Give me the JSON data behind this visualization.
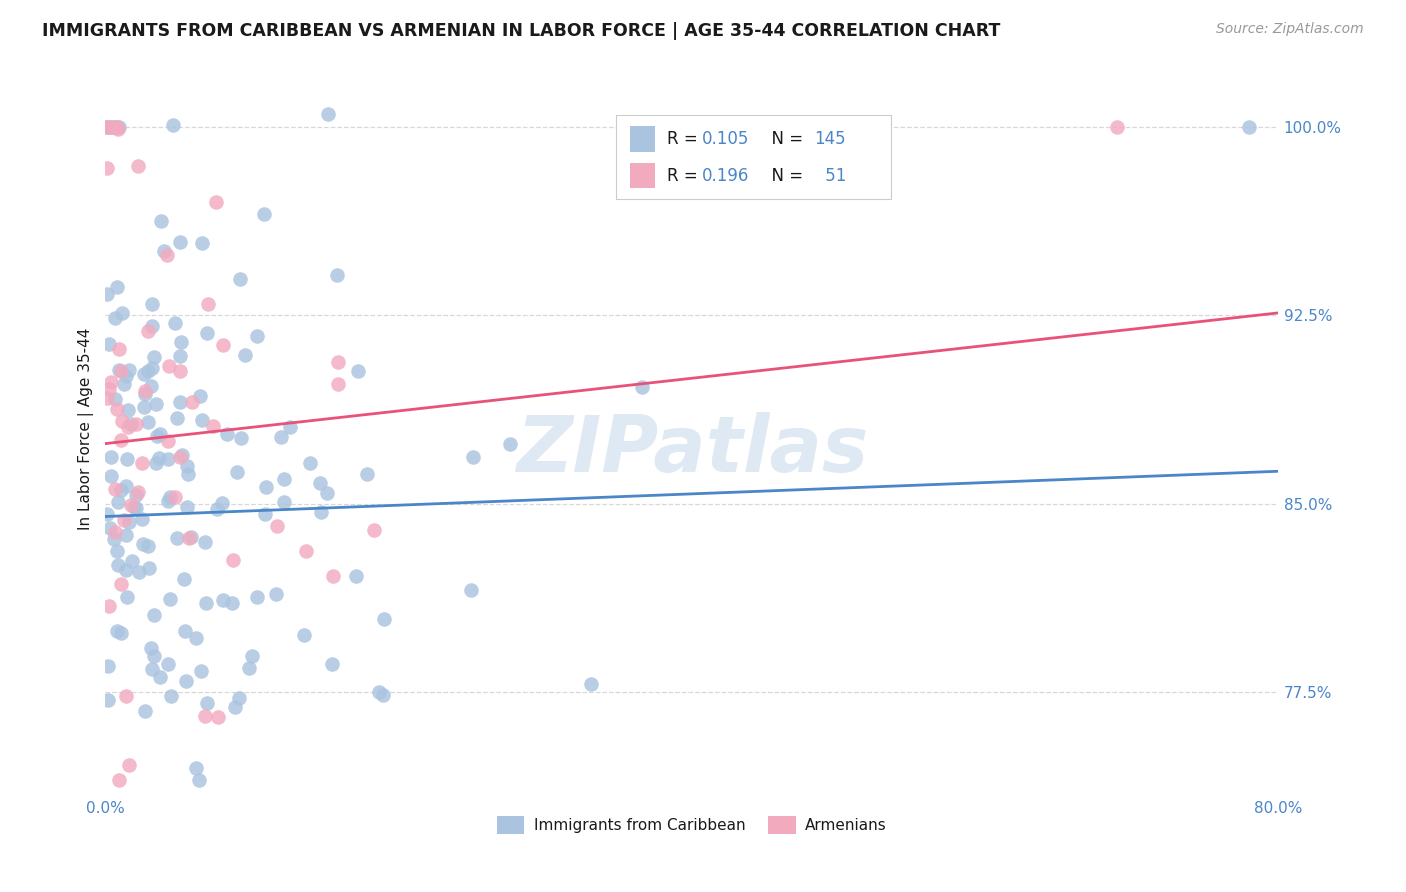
{
  "title": "IMMIGRANTS FROM CARIBBEAN VS ARMENIAN IN LABOR FORCE | AGE 35-44 CORRELATION CHART",
  "source_text": "Source: ZipAtlas.com",
  "ylabel": "In Labor Force | Age 35-44",
  "legend_labels": [
    "Immigrants from Caribbean",
    "Armenians"
  ],
  "legend_r_carib": "0.105",
  "legend_n_carib": "145",
  "legend_r_arm": "0.196",
  "legend_n_arm": "51",
  "caribbean_color": "#aac4e0",
  "armenian_color": "#f2aabf",
  "caribbean_line_color": "#4a86c8",
  "armenian_line_color": "#e8527a",
  "background_color": "#ffffff",
  "grid_color": "#d8d8d8",
  "title_color": "#1a1a1a",
  "axis_label_color": "#4a86c8",
  "text_color": "#1a1a1a",
  "watermark": "ZIPatlas",
  "x_min": 0.0,
  "x_max": 0.8,
  "y_min": 0.735,
  "y_max": 1.025,
  "y_ticks": [
    0.775,
    0.85,
    0.925,
    1.0
  ],
  "y_tick_labels": [
    "77.5%",
    "85.0%",
    "92.5%",
    "100.0%"
  ],
  "carib_line_x0": 0.0,
  "carib_line_x1": 0.8,
  "carib_line_y0": 0.845,
  "carib_line_y1": 0.863,
  "arm_line_x0": 0.0,
  "arm_line_x1": 0.8,
  "arm_line_y0": 0.874,
  "arm_line_y1": 0.926
}
